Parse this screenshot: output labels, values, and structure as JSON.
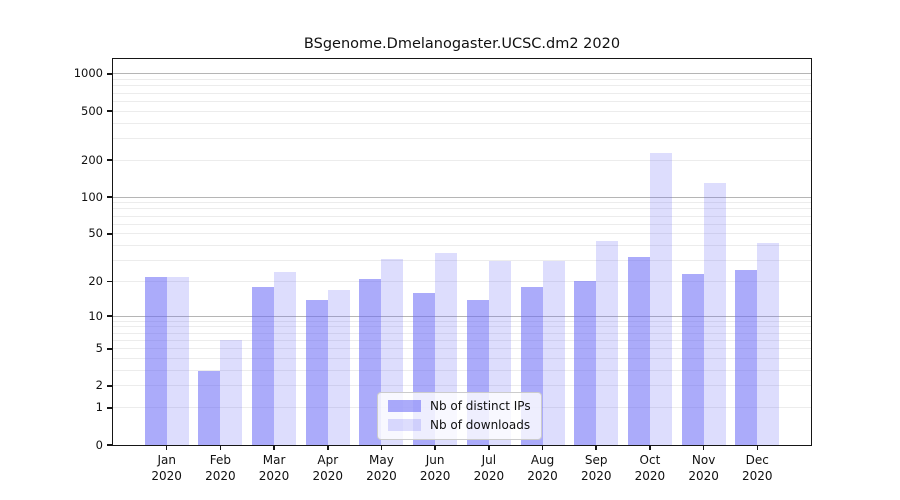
{
  "title": "BSgenome.Dmelanogaster.UCSC.dm2 2020",
  "legend": {
    "items": [
      {
        "label": "Nb of distinct IPs"
      },
      {
        "label": "Nb of downloads"
      }
    ],
    "position": "lower center"
  },
  "x_axis": {
    "months": [
      "Jan",
      "Feb",
      "Mar",
      "Apr",
      "May",
      "Jun",
      "Jul",
      "Aug",
      "Sep",
      "Oct",
      "Nov",
      "Dec"
    ],
    "year": "2020"
  },
  "y_axis": {
    "scale": "log1p",
    "y_max": 1320,
    "tick_values": [
      0,
      1,
      2,
      5,
      10,
      20,
      50,
      100,
      200,
      500,
      1000
    ],
    "tick_labels": [
      "0",
      "1",
      "2",
      "5",
      "10",
      "20",
      "50",
      "100",
      "200",
      "500",
      "1000"
    ],
    "minor_grid_values": [
      1,
      2,
      3,
      4,
      5,
      6,
      7,
      8,
      9,
      20,
      30,
      40,
      50,
      60,
      70,
      80,
      90,
      200,
      300,
      400,
      500,
      600,
      700,
      800,
      900
    ],
    "major_grid_values": [
      10,
      100,
      1000
    ]
  },
  "chart_data": {
    "type": "bar",
    "title": "BSgenome.Dmelanogaster.UCSC.dm2 2020",
    "categories": [
      "Jan 2020",
      "Feb 2020",
      "Mar 2020",
      "Apr 2020",
      "May 2020",
      "Jun 2020",
      "Jul 2020",
      "Aug 2020",
      "Sep 2020",
      "Oct 2020",
      "Nov 2020",
      "Dec 2020"
    ],
    "series": [
      {
        "name": "Nb of distinct IPs",
        "color": "rgba(102,102,245,0.55)",
        "values": [
          22,
          3,
          18,
          14,
          21,
          16,
          14,
          18,
          20,
          32,
          23,
          25
        ]
      },
      {
        "name": "Nb of downloads",
        "color": "rgba(102,102,245,0.22)",
        "values": [
          22,
          6,
          24,
          17,
          31,
          35,
          30,
          30,
          44,
          230,
          130,
          42
        ]
      }
    ],
    "xlabel": "",
    "ylabel": "",
    "ylim": [
      0,
      1320
    ],
    "yticks": [
      0,
      1,
      2,
      5,
      10,
      20,
      50,
      100,
      200,
      500,
      1000
    ],
    "grid": "horizontal, log-spaced minor and major",
    "legend_position": "lower center"
  },
  "colors": {
    "ips_bar": "rgba(102,102,245,0.55)",
    "downloads_bar": "rgba(102,102,245,0.22)",
    "major_grid": "#b5b5b5",
    "minor_grid": "#ececec",
    "spine": "#161616",
    "background": "#ffffff",
    "legend_bg": "rgba(255,255,255,0.8)",
    "legend_border": "#cccccc"
  }
}
